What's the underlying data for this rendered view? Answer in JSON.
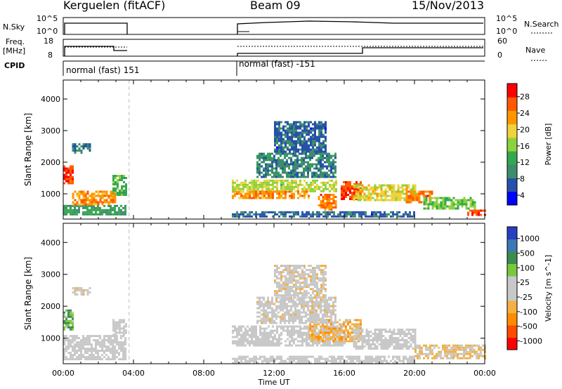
{
  "header": {
    "station": "Kerguelen (fitACF)",
    "beam": "Beam 09",
    "date": "15/Nov/2013"
  },
  "panels": {
    "nsky": {
      "label": "N.Sky",
      "left_ticks": [
        "10^5",
        "10^0"
      ],
      "right_ticks": [
        "10^5",
        "10^0"
      ],
      "right_label": "N.Search"
    },
    "freq": {
      "label": "Freq.",
      "unit": "[MHz]",
      "left_ticks": [
        "18",
        "8"
      ],
      "right_ticks": [
        "60",
        "0"
      ],
      "right_label": "Nave"
    },
    "cpid": {
      "label": "CPID",
      "segments": [
        "normal (fast) 151",
        "normal (fast) -151"
      ]
    }
  },
  "colors": {
    "power": [
      "#0000ff",
      "#2650aa",
      "#3c8c6e",
      "#34a84e",
      "#8cd23c",
      "#f0d23c",
      "#ff9600",
      "#ff5a00",
      "#ff0000"
    ],
    "velocity": [
      "#ff0000",
      "#ff4a00",
      "#ff8c00",
      "#f4b040",
      "#c8c8c8",
      "#c8c8c8",
      "#78c83c",
      "#3c8c50",
      "#3c78b4",
      "#2840c0"
    ]
  },
  "chart_data": [
    {
      "type": "heatmap",
      "panel": "power",
      "ylabel": "Slant Range [km]",
      "yticks": [
        1000,
        2000,
        3000,
        4000
      ],
      "ylim": [
        200,
        4600
      ],
      "xlim": [
        0,
        24
      ],
      "colorbar": {
        "label": "Power [dB]",
        "ticks": [
          "28",
          "24",
          "20",
          "16",
          "12",
          "8",
          "4"
        ],
        "range": [
          0,
          30
        ]
      },
      "regions": [
        {
          "t0": 0.0,
          "t1": 0.6,
          "r0": 1350,
          "r1": 1900,
          "level": 26
        },
        {
          "t0": 0.0,
          "t1": 3.6,
          "r0": 350,
          "r1": 650,
          "level": 10
        },
        {
          "t0": 0.5,
          "t1": 3.0,
          "r0": 650,
          "r1": 1100,
          "level": 22
        },
        {
          "t0": 2.8,
          "t1": 3.6,
          "r0": 950,
          "r1": 1600,
          "level": 12
        },
        {
          "t0": 0.5,
          "t1": 1.5,
          "r0": 2300,
          "r1": 2600,
          "level": 8
        },
        {
          "t0": 9.6,
          "t1": 15.5,
          "r0": 1100,
          "r1": 1450,
          "level": 16
        },
        {
          "t0": 9.6,
          "t1": 14.0,
          "r0": 850,
          "r1": 1100,
          "level": 22
        },
        {
          "t0": 11.0,
          "t1": 15.5,
          "r0": 1500,
          "r1": 2300,
          "level": 8
        },
        {
          "t0": 12.0,
          "t1": 15.0,
          "r0": 2300,
          "r1": 3300,
          "level": 6
        },
        {
          "t0": 14.5,
          "t1": 15.5,
          "r0": 500,
          "r1": 1000,
          "level": 24
        },
        {
          "t0": 15.8,
          "t1": 17.0,
          "r0": 800,
          "r1": 1400,
          "level": 26
        },
        {
          "t0": 16.5,
          "t1": 20.0,
          "r0": 800,
          "r1": 1300,
          "level": 18
        },
        {
          "t0": 19.5,
          "t1": 21.0,
          "r0": 700,
          "r1": 1100,
          "level": 24
        },
        {
          "t0": 20.5,
          "t1": 23.5,
          "r0": 500,
          "r1": 900,
          "level": 14
        },
        {
          "t0": 23.0,
          "t1": 24.0,
          "r0": 350,
          "r1": 500,
          "level": 26
        },
        {
          "t0": 9.6,
          "t1": 20.0,
          "r0": 250,
          "r1": 450,
          "level": 6
        }
      ]
    },
    {
      "type": "heatmap",
      "panel": "velocity",
      "ylabel": "Slant Range [km]",
      "xlabel": "Time UT",
      "yticks": [
        1000,
        2000,
        3000,
        4000
      ],
      "ylim": [
        200,
        4600
      ],
      "xlim": [
        0,
        24
      ],
      "xticks": [
        "00:00",
        "04:00",
        "08:00",
        "12:00",
        "16:00",
        "20:00",
        "00:00"
      ],
      "colorbar": {
        "label": "Velocity [m s^-1]",
        "ticks": [
          "1000",
          "500",
          "100",
          "25",
          "-25",
          "-100",
          "-500",
          "-1000"
        ],
        "range": [
          -1000,
          1000
        ]
      },
      "regions": [
        {
          "t0": 0.0,
          "t1": 0.6,
          "r0": 1300,
          "r1": 1900,
          "level": 350
        },
        {
          "t0": 0.0,
          "t1": 3.6,
          "r0": 350,
          "r1": 1100,
          "level": 0
        },
        {
          "t0": 2.8,
          "t1": 3.6,
          "r0": 1100,
          "r1": 1600,
          "level": 0
        },
        {
          "t0": 0.5,
          "t1": 1.5,
          "r0": 2400,
          "r1": 2600,
          "level": -60
        },
        {
          "t0": 9.6,
          "t1": 16.0,
          "r0": 800,
          "r1": 1400,
          "level": 0
        },
        {
          "t0": 14.0,
          "t1": 17.0,
          "r0": 900,
          "r1": 1600,
          "level": -300
        },
        {
          "t0": 11.0,
          "t1": 15.5,
          "r0": 1500,
          "r1": 2300,
          "level": -60
        },
        {
          "t0": 12.0,
          "t1": 15.0,
          "r0": 2300,
          "r1": 3300,
          "level": -80
        },
        {
          "t0": 16.5,
          "t1": 20.0,
          "r0": 700,
          "r1": 1300,
          "level": 0
        },
        {
          "t0": 20.0,
          "t1": 24.0,
          "r0": 350,
          "r1": 800,
          "level": -200
        },
        {
          "t0": 9.6,
          "t1": 20.0,
          "r0": 250,
          "r1": 450,
          "level": 0
        }
      ]
    }
  ]
}
